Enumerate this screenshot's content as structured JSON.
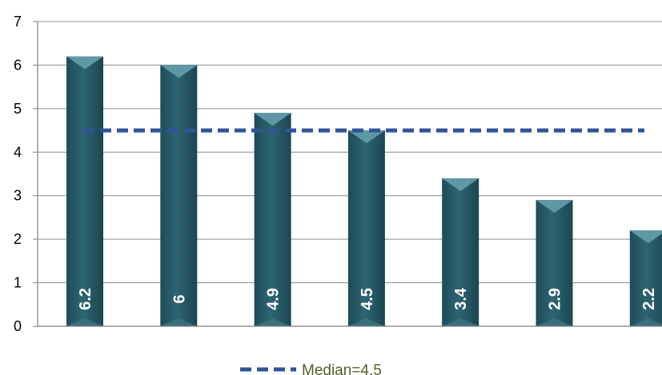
{
  "chart_data": {
    "type": "bar",
    "values": [
      6.2,
      6,
      4.9,
      4.5,
      3.4,
      2.9,
      2.2
    ],
    "data_labels": [
      "6.2",
      "6",
      "4.9",
      "4.5",
      "3.4",
      "2.9",
      "2.2"
    ],
    "ylim": [
      0,
      7
    ],
    "yticks": [
      "0",
      "1",
      "2",
      "3",
      "4",
      "5",
      "6",
      "7"
    ],
    "grid": true,
    "reference_line": {
      "value": 4.5,
      "label": "Median=4.5",
      "style": "dashed"
    },
    "legend": {
      "position": "bottom",
      "entries": [
        "Median=4.5"
      ]
    },
    "colors": {
      "bar_body": "#2e6473",
      "bar_cap": "#5f98a5",
      "bar_label": "#ffffff",
      "median_line": "#2f5597",
      "legend_text": "#4f6228",
      "grid": "#8c8c8c",
      "axis": "#7f7f7f"
    }
  }
}
